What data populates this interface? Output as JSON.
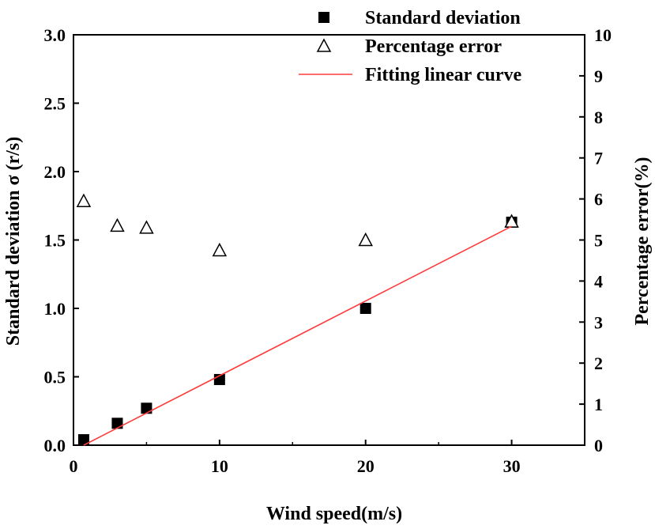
{
  "chart_data": {
    "type": "scatter",
    "xlabel": "Wind speed(m/s)",
    "ylabel_left": "Standard deviation σ (r/s)",
    "ylabel_right": "Percentage error(%)",
    "xlim": [
      0,
      35
    ],
    "ylim_left": [
      0,
      3.0
    ],
    "ylim_right": [
      0,
      10
    ],
    "x_ticks": [
      "0",
      "10",
      "20",
      "30"
    ],
    "y_left_ticks": [
      "0.0",
      "0.5",
      "1.0",
      "1.5",
      "2.0",
      "2.5",
      "3.0"
    ],
    "y_right_ticks": [
      "0",
      "1",
      "2",
      "3",
      "4",
      "5",
      "6",
      "7",
      "8",
      "9",
      "10"
    ],
    "legend_position": "top-right",
    "series": [
      {
        "name": "Standard deviation",
        "marker": "filled-square",
        "axis": "left",
        "color": "#000000",
        "x": [
          0.7,
          3,
          5,
          10,
          20,
          30
        ],
        "y": [
          0.04,
          0.16,
          0.27,
          0.48,
          1.0,
          1.63
        ]
      },
      {
        "name": "Percentage error",
        "marker": "open-triangle",
        "axis": "right",
        "color": "#000000",
        "x": [
          0.7,
          3,
          5,
          10,
          20,
          30
        ],
        "y": [
          5.95,
          5.35,
          5.3,
          4.75,
          5.0,
          5.45
        ]
      },
      {
        "name": "Fitting linear curve",
        "marker": "line",
        "axis": "left",
        "color": "#ff3b3b",
        "x": [
          0.7,
          30
        ],
        "y": [
          0.0,
          1.6
        ]
      }
    ]
  }
}
